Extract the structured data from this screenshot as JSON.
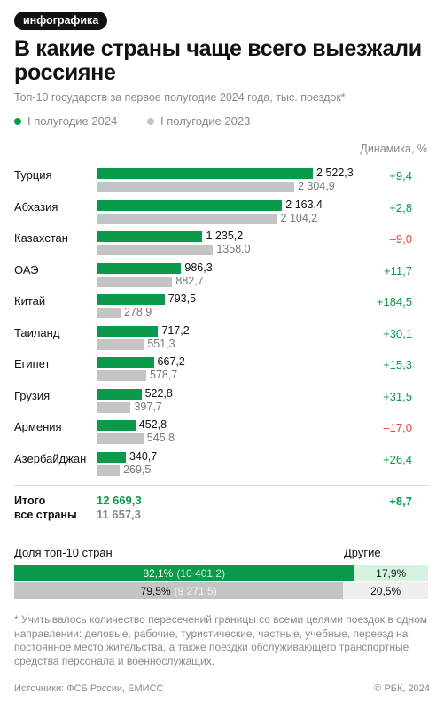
{
  "tag": "инфографика",
  "title": "В какие страны чаще всего выезжали россияне",
  "subtitle": "Топ-10 государств за первое полугодие 2024 года, тыс. поездок*",
  "legend": {
    "a": "I полугодие 2024",
    "b": "I полугодие 2023",
    "color_a": "#0a9a4a",
    "color_b": "#c4c4c4"
  },
  "dynamics_header": "Динамика, %",
  "chart_data": {
    "type": "bar",
    "orientation": "horizontal",
    "categories": [
      "Турция",
      "Абхазия",
      "Казахстан",
      "ОАЭ",
      "Китай",
      "Таиланд",
      "Египет",
      "Грузия",
      "Армения",
      "Азербайджан"
    ],
    "series": [
      {
        "name": "I полугодие 2024",
        "values": [
          2522.3,
          2163.4,
          1235.2,
          986.3,
          793.5,
          717.2,
          667.2,
          522.8,
          452.8,
          340.7
        ],
        "labels": [
          "2 522,3",
          "2 163,4",
          "1 235,2",
          "986,3",
          "793,5",
          "717,2",
          "667,2",
          "522,8",
          "452,8",
          "340,7"
        ]
      },
      {
        "name": "I полугодие 2023",
        "values": [
          2304.9,
          2104.2,
          1358.0,
          882.7,
          278.9,
          551.3,
          578.7,
          397.7,
          545.8,
          269.5
        ],
        "labels": [
          "2 304,9",
          "2 104,2",
          "1358,0",
          "882,7",
          "278,9",
          "551,3",
          "578,7",
          "397,7",
          "545,8",
          "269,5"
        ]
      }
    ],
    "dynamics": [
      "+9,4",
      "+2,8",
      "–9,0",
      "+11,7",
      "+184,5",
      "+30,1",
      "+15,3",
      "+31,5",
      "–17,0",
      "+26,4"
    ],
    "dynamics_sign": [
      "pos",
      "pos",
      "neg",
      "pos",
      "pos",
      "pos",
      "pos",
      "pos",
      "neg",
      "pos"
    ],
    "xlim": [
      0,
      2522.3
    ]
  },
  "total": {
    "label_line1": "Итого",
    "label_line2": "все страны",
    "value_a": "12 669,3",
    "value_b": "11 657,3",
    "dynamics": "+8,7"
  },
  "share": {
    "title": "Доля топ-10 стран",
    "other_label": "Другие",
    "row_2024": {
      "percent": 82.1,
      "main_label": "82,1%",
      "main_paren": "(10 401,2)",
      "rest_label": "17,9%"
    },
    "row_2023": {
      "percent": 79.5,
      "main_label": "79,5%",
      "main_paren": "(9 271,5)",
      "rest_label": "20,5%"
    }
  },
  "footnote": "* Учитывалось количество пересечений границы со всеми целями поездок в одном направлении: деловые, рабочие, туристические, частные, учебные, переезд на постоянное место жительства, а также поездки обслуживающего транспортные средства персонала и военнослужащих.",
  "source": "Источники: ФСБ России, ЕМИСС",
  "copyright": "© РБК, 2024"
}
